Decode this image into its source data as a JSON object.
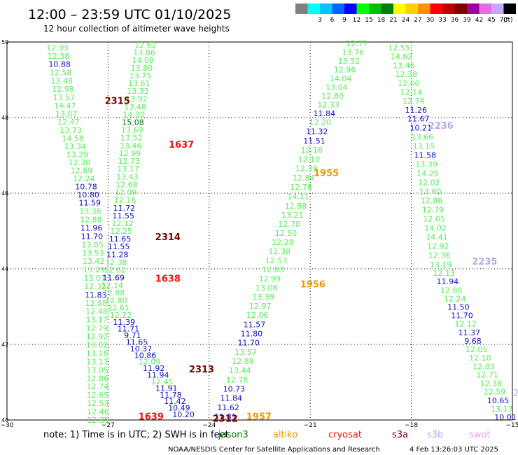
{
  "header": {
    "title": "12:00 – 23:59 UTC 01/10/2025",
    "subtitle": "12 hour collection of altimeter wave heights"
  },
  "legend": {
    "unit": "(ft)",
    "swatches": [
      {
        "color": "#808080",
        "label": ""
      },
      {
        "color": "#00ffff",
        "label": "3"
      },
      {
        "color": "#00c8ff",
        "label": "6"
      },
      {
        "color": "#0064ff",
        "label": "9"
      },
      {
        "color": "#0000ff",
        "label": "12"
      },
      {
        "color": "#00ff00",
        "label": "15"
      },
      {
        "color": "#00c000",
        "label": "18"
      },
      {
        "color": "#008000",
        "label": "21"
      },
      {
        "color": "#ffff00",
        "label": "24"
      },
      {
        "color": "#ffd000",
        "label": "27"
      },
      {
        "color": "#ff9000",
        "label": "30"
      },
      {
        "color": "#ff0000",
        "label": "33"
      },
      {
        "color": "#c00000",
        "label": "36"
      },
      {
        "color": "#800000",
        "label": "39"
      },
      {
        "color": "#a000a0",
        "label": "42"
      },
      {
        "color": "#e070e0",
        "label": "45"
      },
      {
        "color": "#c8a8ff",
        "label": "70"
      },
      {
        "color": "#000000",
        "label": ""
      }
    ]
  },
  "axes": {
    "lat_labels": [
      "50",
      "48",
      "46",
      "44",
      "42",
      "40"
    ],
    "lon_labels": [
      "−30",
      "−27",
      "−24",
      "−21",
      "−18",
      "−15"
    ]
  },
  "colors": {
    "green": "#55ee55",
    "blue": "#1010c0",
    "darkred": "#800000",
    "red": "#ee1111",
    "orange": "#ee9900",
    "lavender": "#b8a8e8",
    "pink": "#f0a0e8",
    "darkgreen": "#007700"
  },
  "track_labels": [
    {
      "text": "2315",
      "color": "darkred",
      "lon": -27.1,
      "lat": 48.45
    },
    {
      "text": "1637",
      "color": "red",
      "lon": -25.2,
      "lat": 47.3
    },
    {
      "text": "2314",
      "color": "darkred",
      "lon": -25.6,
      "lat": 44.85
    },
    {
      "text": "1638",
      "color": "red",
      "lon": -25.6,
      "lat": 43.75
    },
    {
      "text": "2313",
      "color": "darkred",
      "lon": -24.6,
      "lat": 41.35
    },
    {
      "text": "1639",
      "color": "red",
      "lon": -26.1,
      "lat": 40.1
    },
    {
      "text": "2312",
      "color": "darkred",
      "lon": -23.9,
      "lat": 40.05
    },
    {
      "text": "1957",
      "color": "orange",
      "lon": -22.9,
      "lat": 40.1
    },
    {
      "text": "1956",
      "color": "orange",
      "lon": -21.3,
      "lat": 43.6
    },
    {
      "text": "1955",
      "color": "orange",
      "lon": -20.9,
      "lat": 46.55
    },
    {
      "text": "2236",
      "color": "lavender",
      "lon": -17.5,
      "lat": 47.8
    },
    {
      "text": "2235",
      "color": "lavender",
      "lon": -16.2,
      "lat": 44.2
    }
  ],
  "tracks": [
    {
      "id": "A",
      "labels": [
        {
          "v": "12.93",
          "c": "green"
        },
        {
          "v": "12.38",
          "c": "green"
        },
        {
          "v": "10.88",
          "c": "blue"
        },
        {
          "v": "12.58",
          "c": "green"
        },
        {
          "v": "13.48",
          "c": "green"
        },
        {
          "v": "12.98",
          "c": "green"
        },
        {
          "v": "13.57",
          "c": "green"
        },
        {
          "v": "14.47",
          "c": "green"
        },
        {
          "v": "13.07",
          "c": "green"
        },
        {
          "v": "12.47",
          "c": "green"
        },
        {
          "v": "13.73",
          "c": "green"
        },
        {
          "v": "14.58",
          "c": "green"
        },
        {
          "v": "13.34",
          "c": "green"
        },
        {
          "v": "13.29",
          "c": "green"
        },
        {
          "v": "12.30",
          "c": "green"
        },
        {
          "v": "12.69",
          "c": "green"
        },
        {
          "v": "12.24",
          "c": "green"
        },
        {
          "v": "10.78",
          "c": "blue"
        },
        {
          "v": "10.80",
          "c": "blue"
        },
        {
          "v": "11.59",
          "c": "blue"
        },
        {
          "v": "13.36",
          "c": "green"
        },
        {
          "v": "12.88",
          "c": "green"
        },
        {
          "v": "11.96",
          "c": "blue"
        },
        {
          "v": "11.70",
          "c": "blue"
        },
        {
          "v": "13.05",
          "c": "green"
        },
        {
          "v": "13.53",
          "c": "green"
        },
        {
          "v": "13.42",
          "c": "green"
        },
        {
          "v": "13.29",
          "c": "green"
        },
        {
          "v": "13.07",
          "c": "green"
        },
        {
          "v": "12.32",
          "c": "green"
        },
        {
          "v": "11.83",
          "c": "blue"
        },
        {
          "v": "12.88",
          "c": "green"
        },
        {
          "v": "12.48",
          "c": "green"
        },
        {
          "v": "13.17",
          "c": "green"
        },
        {
          "v": "12.79",
          "c": "green"
        },
        {
          "v": "12.92",
          "c": "green"
        },
        {
          "v": "13.02",
          "c": "green"
        },
        {
          "v": "13.18",
          "c": "green"
        },
        {
          "v": "13.13",
          "c": "green"
        },
        {
          "v": "13.05",
          "c": "green"
        },
        {
          "v": "12.86",
          "c": "green"
        },
        {
          "v": "12.74",
          "c": "green"
        },
        {
          "v": "12.65",
          "c": "green"
        },
        {
          "v": "12.53",
          "c": "green"
        },
        {
          "v": "12.46",
          "c": "green"
        },
        {
          "v": "12.35",
          "c": "green"
        }
      ]
    },
    {
      "id": "B",
      "labels": [
        {
          "v": "12.62",
          "c": "green"
        },
        {
          "v": "13.86",
          "c": "green"
        },
        {
          "v": "14.09",
          "c": "green"
        },
        {
          "v": "13.80",
          "c": "green"
        },
        {
          "v": "13.75",
          "c": "green"
        },
        {
          "v": "13.61",
          "c": "green"
        },
        {
          "v": "13.33",
          "c": "green"
        },
        {
          "v": "13.92",
          "c": "green"
        },
        {
          "v": "13.48",
          "c": "green"
        },
        {
          "v": "14.30",
          "c": "green"
        },
        {
          "v": "15.08",
          "c": "darkgreen"
        },
        {
          "v": "13.69",
          "c": "green"
        },
        {
          "v": "13.52",
          "c": "green"
        },
        {
          "v": "13.46",
          "c": "green"
        },
        {
          "v": "12.99",
          "c": "green"
        },
        {
          "v": "12.73",
          "c": "green"
        },
        {
          "v": "13.17",
          "c": "green"
        },
        {
          "v": "13.43",
          "c": "green"
        },
        {
          "v": "12.68",
          "c": "green"
        },
        {
          "v": "12.09",
          "c": "green"
        },
        {
          "v": "12.16",
          "c": "green"
        },
        {
          "v": "11.72",
          "c": "blue"
        },
        {
          "v": "11.55",
          "c": "blue"
        },
        {
          "v": "12.12",
          "c": "green"
        },
        {
          "v": "12.25",
          "c": "green"
        },
        {
          "v": "11.65",
          "c": "blue"
        },
        {
          "v": "11.55",
          "c": "blue"
        },
        {
          "v": "11.28",
          "c": "blue"
        },
        {
          "v": "12.38",
          "c": "green"
        },
        {
          "v": "12.62",
          "c": "green"
        },
        {
          "v": "11.69",
          "c": "blue"
        },
        {
          "v": "12.14",
          "c": "green"
        },
        {
          "v": "12.88",
          "c": "green"
        },
        {
          "v": "12.80",
          "c": "green"
        },
        {
          "v": "12.61",
          "c": "green"
        },
        {
          "v": "12.22",
          "c": "green"
        },
        {
          "v": "11.39",
          "c": "blue"
        },
        {
          "v": "11.71",
          "c": "blue"
        },
        {
          "v": "9.71",
          "c": "blue"
        },
        {
          "v": "11.65",
          "c": "blue"
        },
        {
          "v": "10.37",
          "c": "blue"
        },
        {
          "v": "10.86",
          "c": "blue"
        },
        {
          "v": "12.09",
          "c": "green"
        },
        {
          "v": "11.92",
          "c": "blue"
        },
        {
          "v": "11.94",
          "c": "blue"
        },
        {
          "v": "12.45",
          "c": "green"
        },
        {
          "v": "11.91",
          "c": "blue"
        },
        {
          "v": "11.78",
          "c": "blue"
        },
        {
          "v": "11.42",
          "c": "blue"
        },
        {
          "v": "10.49",
          "c": "blue"
        },
        {
          "v": "10.20",
          "c": "blue"
        }
      ]
    },
    {
      "id": "C",
      "labels": [
        {
          "v": "12.77",
          "c": "green"
        },
        {
          "v": "13.76",
          "c": "green"
        },
        {
          "v": "13.52",
          "c": "green"
        },
        {
          "v": "12.96",
          "c": "green"
        },
        {
          "v": "14.04",
          "c": "green"
        },
        {
          "v": "13.04",
          "c": "green"
        },
        {
          "v": "12.80",
          "c": "green"
        },
        {
          "v": "12.33",
          "c": "green"
        },
        {
          "v": "11.84",
          "c": "blue"
        },
        {
          "v": "12.20",
          "c": "green"
        },
        {
          "v": "11.32",
          "c": "blue"
        },
        {
          "v": "11.51",
          "c": "blue"
        },
        {
          "v": "12.16",
          "c": "green"
        },
        {
          "v": "12.10",
          "c": "green"
        },
        {
          "v": "12.39",
          "c": "green"
        },
        {
          "v": "12.84",
          "c": "green"
        },
        {
          "v": "12.78",
          "c": "green"
        },
        {
          "v": "14.11",
          "c": "green"
        },
        {
          "v": "12.88",
          "c": "green"
        },
        {
          "v": "13.21",
          "c": "green"
        },
        {
          "v": "12.70",
          "c": "green"
        },
        {
          "v": "12.50",
          "c": "green"
        },
        {
          "v": "12.28",
          "c": "green"
        },
        {
          "v": "12.38",
          "c": "green"
        },
        {
          "v": "12.53",
          "c": "green"
        },
        {
          "v": "12.83",
          "c": "green"
        },
        {
          "v": "12.99",
          "c": "green"
        },
        {
          "v": "13.08",
          "c": "green"
        },
        {
          "v": "13.39",
          "c": "green"
        },
        {
          "v": "12.97",
          "c": "green"
        },
        {
          "v": "12.06",
          "c": "green"
        },
        {
          "v": "11.57",
          "c": "blue"
        },
        {
          "v": "11.80",
          "c": "blue"
        },
        {
          "v": "11.70",
          "c": "blue"
        },
        {
          "v": "13.57",
          "c": "green"
        },
        {
          "v": "12.89",
          "c": "green"
        },
        {
          "v": "13.44",
          "c": "green"
        },
        {
          "v": "12.78",
          "c": "green"
        },
        {
          "v": "10.73",
          "c": "blue"
        },
        {
          "v": "11.84",
          "c": "blue"
        },
        {
          "v": "11.62",
          "c": "blue"
        },
        {
          "v": "11.81",
          "c": "blue"
        }
      ]
    },
    {
      "id": "D",
      "labels": [
        {
          "v": "12.55",
          "c": "green"
        },
        {
          "v": "14.62",
          "c": "green"
        },
        {
          "v": "13.46",
          "c": "green"
        },
        {
          "v": "12.38",
          "c": "green"
        },
        {
          "v": "12.60",
          "c": "green"
        },
        {
          "v": "12.14",
          "c": "green"
        },
        {
          "v": "12.74",
          "c": "green"
        },
        {
          "v": "11.26",
          "c": "blue"
        },
        {
          "v": "11.67",
          "c": "blue"
        },
        {
          "v": "10.21",
          "c": "blue"
        },
        {
          "v": "13.66",
          "c": "green"
        },
        {
          "v": "13.15",
          "c": "green"
        },
        {
          "v": "11.58",
          "c": "blue"
        },
        {
          "v": "13.39",
          "c": "green"
        },
        {
          "v": "14.29",
          "c": "green"
        },
        {
          "v": "12.02",
          "c": "green"
        },
        {
          "v": "13.60",
          "c": "green"
        },
        {
          "v": "12.86",
          "c": "green"
        },
        {
          "v": "12.79",
          "c": "green"
        },
        {
          "v": "12.05",
          "c": "green"
        },
        {
          "v": "14.02",
          "c": "green"
        },
        {
          "v": "14.41",
          "c": "green"
        },
        {
          "v": "12.92",
          "c": "green"
        },
        {
          "v": "12.36",
          "c": "green"
        },
        {
          "v": "13.19",
          "c": "green"
        },
        {
          "v": "12.13",
          "c": "green"
        },
        {
          "v": "11.94",
          "c": "blue"
        },
        {
          "v": "12.80",
          "c": "green"
        },
        {
          "v": "12.24",
          "c": "green"
        },
        {
          "v": "11.50",
          "c": "blue"
        },
        {
          "v": "11.70",
          "c": "blue"
        },
        {
          "v": "12.12",
          "c": "green"
        },
        {
          "v": "11.37",
          "c": "blue"
        },
        {
          "v": "9.68",
          "c": "blue"
        },
        {
          "v": "12.05",
          "c": "green"
        },
        {
          "v": "12.10",
          "c": "green"
        },
        {
          "v": "12.03",
          "c": "green"
        },
        {
          "v": "12.71",
          "c": "green"
        },
        {
          "v": "12.38",
          "c": "green"
        },
        {
          "v": "12.59",
          "c": "green"
        },
        {
          "v": "10.65",
          "c": "blue"
        },
        {
          "v": "13.17",
          "c": "green"
        },
        {
          "v": "10.01",
          "c": "blue"
        }
      ]
    }
  ],
  "edge_fragment": {
    "text": "2",
    "color": "lavender"
  },
  "footer": {
    "note": "note:  1) Time is in UTC;  2) SWH is in feet",
    "satellites": [
      {
        "name": "jason3",
        "color": "#007700"
      },
      {
        "name": "altiko",
        "color": "#ee9900"
      },
      {
        "name": "cryosat",
        "color": "#ee1111"
      },
      {
        "name": "s3a",
        "color": "#800000"
      },
      {
        "name": "s3b",
        "color": "#b8a8e8"
      },
      {
        "name": "swot",
        "color": "#f0a0e8"
      }
    ],
    "credit": "NOAA/NESDIS Center for Satellite Applications and Research",
    "timestamp": "4 Feb 13:26:03 UTC 2025"
  }
}
